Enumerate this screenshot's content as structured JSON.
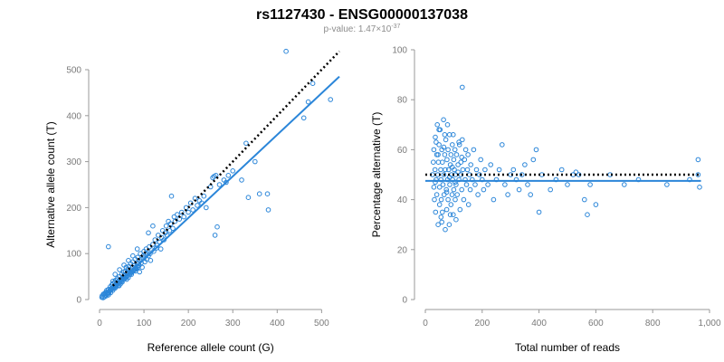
{
  "figure": {
    "title": "rs1127430 - ENSG00000137038",
    "subtitle_prefix": "p-value: 1.47×10",
    "subtitle_exp": "-37"
  },
  "colors": {
    "points": "#2b86d9",
    "fit": "#2b86d9",
    "reference": "#000000"
  },
  "chart_data": [
    {
      "type": "scatter",
      "xlabel": "Reference allele count (G)",
      "ylabel": "Alternative allele count (T)",
      "xlim": [
        0,
        540
      ],
      "ylim": [
        0,
        500
      ],
      "xticks": [
        0,
        100,
        200,
        300,
        400,
        500
      ],
      "yticks": [
        0,
        100,
        200,
        300,
        400,
        500
      ],
      "xtick_labels": [
        "0",
        "100",
        "200",
        "300",
        "400",
        "500"
      ],
      "ytick_labels": [
        "0",
        "100",
        "200",
        "300",
        "400",
        "500"
      ],
      "reference_line": {
        "style": "dotted",
        "x": [
          30,
          540
        ],
        "y": [
          30,
          540
        ]
      },
      "fit_line": {
        "style": "solid",
        "x": [
          20,
          540
        ],
        "y": [
          15,
          485
        ]
      },
      "points": [
        [
          10,
          12
        ],
        [
          12,
          10
        ],
        [
          14,
          16
        ],
        [
          15,
          8
        ],
        [
          16,
          20
        ],
        [
          18,
          14
        ],
        [
          20,
          22
        ],
        [
          20,
          10
        ],
        [
          22,
          18
        ],
        [
          24,
          28
        ],
        [
          25,
          15
        ],
        [
          26,
          24
        ],
        [
          28,
          32
        ],
        [
          30,
          20
        ],
        [
          30,
          35
        ],
        [
          32,
          28
        ],
        [
          34,
          38
        ],
        [
          35,
          25
        ],
        [
          36,
          42
        ],
        [
          38,
          30
        ],
        [
          40,
          36
        ],
        [
          40,
          45
        ],
        [
          42,
          40
        ],
        [
          44,
          30
        ],
        [
          45,
          50
        ],
        [
          46,
          38
        ],
        [
          48,
          44
        ],
        [
          50,
          55
        ],
        [
          50,
          40
        ],
        [
          52,
          48
        ],
        [
          54,
          60
        ],
        [
          55,
          45
        ],
        [
          56,
          52
        ],
        [
          58,
          62
        ],
        [
          60,
          50
        ],
        [
          60,
          70
        ],
        [
          62,
          58
        ],
        [
          64,
          66
        ],
        [
          65,
          48
        ],
        [
          66,
          72
        ],
        [
          68,
          60
        ],
        [
          70,
          65
        ],
        [
          70,
          78
        ],
        [
          72,
          55
        ],
        [
          74,
          70
        ],
        [
          75,
          82
        ],
        [
          76,
          62
        ],
        [
          78,
          74
        ],
        [
          80,
          70
        ],
        [
          80,
          88
        ],
        [
          82,
          66
        ],
        [
          84,
          80
        ],
        [
          85,
          72
        ],
        [
          86,
          92
        ],
        [
          88,
          78
        ],
        [
          90,
          85
        ],
        [
          90,
          60
        ],
        [
          92,
          100
        ],
        [
          94,
          80
        ],
        [
          95,
          88
        ],
        [
          96,
          70
        ],
        [
          98,
          95
        ],
        [
          100,
          90
        ],
        [
          100,
          105
        ],
        [
          102,
          82
        ],
        [
          104,
          98
        ],
        [
          105,
          110
        ],
        [
          106,
          88
        ],
        [
          108,
          100
        ],
        [
          110,
          95
        ],
        [
          112,
          115
        ],
        [
          114,
          100
        ],
        [
          115,
          85
        ],
        [
          118,
          108
        ],
        [
          120,
          120
        ],
        [
          122,
          105
        ],
        [
          125,
          130
        ],
        [
          128,
          112
        ],
        [
          130,
          118
        ],
        [
          132,
          140
        ],
        [
          135,
          125
        ],
        [
          138,
          110
        ],
        [
          140,
          135
        ],
        [
          142,
          150
        ],
        [
          145,
          130
        ],
        [
          148,
          145
        ],
        [
          150,
          160
        ],
        [
          152,
          140
        ],
        [
          155,
          170
        ],
        [
          158,
          150
        ],
        [
          160,
          165
        ],
        [
          162,
          225
        ],
        [
          165,
          155
        ],
        [
          168,
          180
        ],
        [
          170,
          170
        ],
        [
          175,
          185
        ],
        [
          180,
          175
        ],
        [
          185,
          190
        ],
        [
          190,
          180
        ],
        [
          195,
          200
        ],
        [
          200,
          190
        ],
        [
          205,
          210
        ],
        [
          210,
          195
        ],
        [
          215,
          220
        ],
        [
          220,
          205
        ],
        [
          225,
          215
        ],
        [
          230,
          210
        ],
        [
          235,
          225
        ],
        [
          240,
          200
        ],
        [
          250,
          245
        ],
        [
          255,
          265
        ],
        [
          258,
          268
        ],
        [
          260,
          140
        ],
        [
          262,
          270
        ],
        [
          265,
          158
        ],
        [
          270,
          250
        ],
        [
          280,
          260
        ],
        [
          285,
          255
        ],
        [
          290,
          270
        ],
        [
          300,
          280
        ],
        [
          320,
          260
        ],
        [
          330,
          340
        ],
        [
          335,
          222
        ],
        [
          350,
          300
        ],
        [
          360,
          230
        ],
        [
          378,
          230
        ],
        [
          380,
          195
        ],
        [
          420,
          540
        ],
        [
          460,
          395
        ],
        [
          470,
          430
        ],
        [
          480,
          470
        ],
        [
          520,
          435
        ],
        [
          20,
          115
        ],
        [
          30,
          40
        ],
        [
          35,
          55
        ],
        [
          45,
          65
        ],
        [
          55,
          75
        ],
        [
          65,
          85
        ],
        [
          75,
          95
        ],
        [
          85,
          110
        ],
        [
          110,
          145
        ],
        [
          120,
          160
        ],
        [
          5,
          5
        ],
        [
          6,
          8
        ],
        [
          8,
          4
        ],
        [
          9,
          12
        ],
        [
          11,
          6
        ],
        [
          13,
          14
        ],
        [
          17,
          12
        ],
        [
          19,
          16
        ],
        [
          21,
          14
        ],
        [
          23,
          20
        ],
        [
          27,
          22
        ],
        [
          29,
          26
        ],
        [
          31,
          24
        ],
        [
          33,
          30
        ],
        [
          37,
          28
        ],
        [
          39,
          34
        ],
        [
          41,
          30
        ],
        [
          43,
          36
        ],
        [
          47,
          34
        ],
        [
          49,
          42
        ],
        [
          51,
          38
        ],
        [
          53,
          44
        ],
        [
          57,
          46
        ],
        [
          59,
          48
        ],
        [
          61,
          44
        ],
        [
          63,
          52
        ],
        [
          67,
          54
        ],
        [
          69,
          56
        ],
        [
          71,
          58
        ],
        [
          73,
          60
        ],
        [
          77,
          64
        ],
        [
          79,
          66
        ],
        [
          81,
          62
        ],
        [
          83,
          68
        ],
        [
          87,
          70
        ],
        [
          89,
          74
        ]
      ]
    },
    {
      "type": "scatter",
      "xlabel": "Total number of reads",
      "ylabel": "Percentage alternative (T)",
      "xlim": [
        0,
        1000
      ],
      "ylim": [
        0,
        100
      ],
      "xticks": [
        0,
        200,
        400,
        600,
        800,
        1000
      ],
      "yticks": [
        0,
        20,
        40,
        60,
        80,
        100
      ],
      "xtick_labels": [
        "0",
        "200",
        "400",
        "600",
        "800",
        "1,000"
      ],
      "ytick_labels": [
        "0",
        "20",
        "40",
        "60",
        "80",
        "100"
      ],
      "reference_line": {
        "style": "dotted",
        "x": [
          0,
          970
        ],
        "y": [
          50,
          50
        ]
      },
      "fit_line": {
        "style": "solid",
        "x": [
          0,
          970
        ],
        "y": [
          47.5,
          47.5
        ]
      },
      "points": [
        [
          25,
          50
        ],
        [
          28,
          55
        ],
        [
          30,
          45
        ],
        [
          30,
          60
        ],
        [
          32,
          40
        ],
        [
          34,
          52
        ],
        [
          35,
          65
        ],
        [
          36,
          35
        ],
        [
          38,
          48
        ],
        [
          40,
          58
        ],
        [
          40,
          42
        ],
        [
          42,
          70
        ],
        [
          44,
          50
        ],
        [
          45,
          30
        ],
        [
          46,
          55
        ],
        [
          48,
          62
        ],
        [
          50,
          45
        ],
        [
          50,
          38
        ],
        [
          52,
          68
        ],
        [
          54,
          52
        ],
        [
          55,
          48
        ],
        [
          56,
          40
        ],
        [
          58,
          60
        ],
        [
          60,
          35
        ],
        [
          60,
          55
        ],
        [
          62,
          46
        ],
        [
          64,
          72
        ],
        [
          65,
          50
        ],
        [
          66,
          42
        ],
        [
          68,
          58
        ],
        [
          70,
          28
        ],
        [
          70,
          52
        ],
        [
          72,
          64
        ],
        [
          74,
          44
        ],
        [
          75,
          36
        ],
        [
          76,
          56
        ],
        [
          78,
          48
        ],
        [
          80,
          60
        ],
        [
          80,
          40
        ],
        [
          82,
          52
        ],
        [
          84,
          30
        ],
        [
          85,
          66
        ],
        [
          86,
          46
        ],
        [
          88,
          54
        ],
        [
          90,
          38
        ],
        [
          90,
          58
        ],
        [
          92,
          50
        ],
        [
          94,
          42
        ],
        [
          95,
          62
        ],
        [
          96,
          48
        ],
        [
          98,
          34
        ],
        [
          100,
          56
        ],
        [
          100,
          44
        ],
        [
          102,
          52
        ],
        [
          104,
          60
        ],
        [
          105,
          40
        ],
        [
          106,
          50
        ],
        [
          108,
          46
        ],
        [
          110,
          58
        ],
        [
          112,
          42
        ],
        [
          115,
          54
        ],
        [
          118,
          48
        ],
        [
          120,
          62
        ],
        [
          122,
          36
        ],
        [
          125,
          50
        ],
        [
          128,
          44
        ],
        [
          130,
          64
        ],
        [
          130,
          85
        ],
        [
          132,
          52
        ],
        [
          135,
          40
        ],
        [
          138,
          56
        ],
        [
          140,
          48
        ],
        [
          142,
          60
        ],
        [
          145,
          46
        ],
        [
          148,
          52
        ],
        [
          150,
          58
        ],
        [
          152,
          38
        ],
        [
          155,
          50
        ],
        [
          158,
          44
        ],
        [
          160,
          54
        ],
        [
          165,
          48
        ],
        [
          170,
          60
        ],
        [
          175,
          46
        ],
        [
          180,
          52
        ],
        [
          185,
          42
        ],
        [
          190,
          50
        ],
        [
          195,
          56
        ],
        [
          200,
          48
        ],
        [
          205,
          44
        ],
        [
          210,
          52
        ],
        [
          220,
          46
        ],
        [
          230,
          54
        ],
        [
          240,
          40
        ],
        [
          250,
          48
        ],
        [
          260,
          52
        ],
        [
          270,
          62
        ],
        [
          280,
          46
        ],
        [
          290,
          42
        ],
        [
          300,
          50
        ],
        [
          310,
          52
        ],
        [
          320,
          48
        ],
        [
          330,
          44
        ],
        [
          340,
          50
        ],
        [
          350,
          54
        ],
        [
          360,
          46
        ],
        [
          370,
          42
        ],
        [
          380,
          56
        ],
        [
          390,
          60
        ],
        [
          400,
          35
        ],
        [
          410,
          50
        ],
        [
          440,
          44
        ],
        [
          460,
          48
        ],
        [
          480,
          52
        ],
        [
          500,
          46
        ],
        [
          520,
          50
        ],
        [
          530,
          51
        ],
        [
          540,
          50
        ],
        [
          560,
          40
        ],
        [
          570,
          34
        ],
        [
          580,
          46
        ],
        [
          600,
          38
        ],
        [
          650,
          50
        ],
        [
          700,
          46
        ],
        [
          750,
          48
        ],
        [
          850,
          46
        ],
        [
          930,
          48
        ],
        [
          960,
          56
        ],
        [
          960,
          50
        ],
        [
          965,
          45
        ],
        [
          35,
          47
        ],
        [
          45,
          58
        ],
        [
          55,
          33
        ],
        [
          65,
          61
        ],
        [
          75,
          43
        ],
        [
          85,
          49
        ],
        [
          95,
          53
        ],
        [
          105,
          47
        ],
        [
          115,
          51
        ],
        [
          125,
          55
        ],
        [
          38,
          63
        ],
        [
          48,
          68
        ],
        [
          58,
          31
        ],
        [
          68,
          66
        ],
        [
          78,
          70
        ],
        [
          88,
          34
        ],
        [
          98,
          66
        ],
        [
          108,
          32
        ],
        [
          118,
          63
        ],
        [
          128,
          57
        ]
      ]
    }
  ]
}
